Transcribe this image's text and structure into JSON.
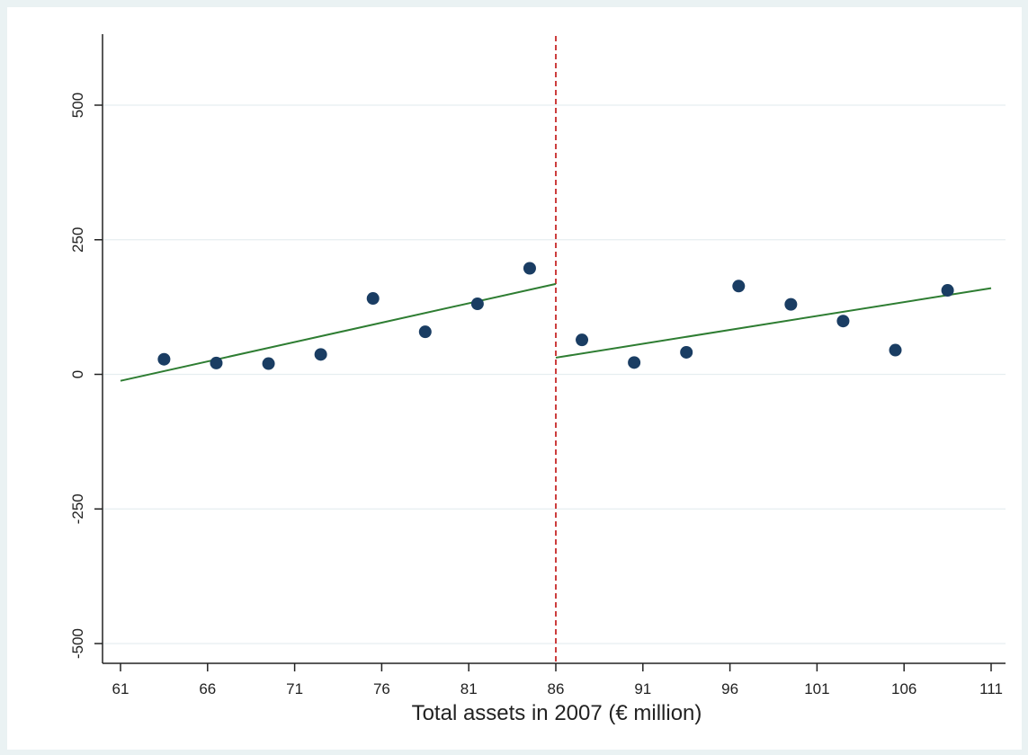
{
  "chart_data": {
    "type": "scatter",
    "title": "",
    "xlabel": "Total assets in 2007 (€ million)",
    "ylabel": "",
    "xlim": [
      61,
      111
    ],
    "ylim": [
      -500,
      500
    ],
    "xticks": [
      61,
      66,
      71,
      76,
      81,
      86,
      91,
      96,
      101,
      106,
      111
    ],
    "yticks": [
      -500,
      -250,
      0,
      250,
      500
    ],
    "grid": "horizontal",
    "cutoff": 86,
    "points": [
      {
        "x": 63.5,
        "y": 28
      },
      {
        "x": 66.5,
        "y": 21
      },
      {
        "x": 69.5,
        "y": 20
      },
      {
        "x": 72.5,
        "y": 37
      },
      {
        "x": 75.5,
        "y": 141
      },
      {
        "x": 78.5,
        "y": 79
      },
      {
        "x": 81.5,
        "y": 131
      },
      {
        "x": 84.5,
        "y": 197
      },
      {
        "x": 87.5,
        "y": 64
      },
      {
        "x": 90.5,
        "y": 22
      },
      {
        "x": 93.5,
        "y": 41
      },
      {
        "x": 96.5,
        "y": 164
      },
      {
        "x": 99.5,
        "y": 130
      },
      {
        "x": 102.5,
        "y": 99
      },
      {
        "x": 105.5,
        "y": 45
      },
      {
        "x": 108.5,
        "y": 156
      }
    ],
    "fit_lines": [
      {
        "x": [
          61,
          86
        ],
        "y": [
          -12,
          168
        ]
      },
      {
        "x": [
          86,
          111
        ],
        "y": [
          31,
          160
        ]
      }
    ],
    "colors": {
      "points": "#1a3d63",
      "fit": "#2e7d32",
      "cutoff": "#c62828",
      "grid": "#e6eef0",
      "axis": "#222222"
    }
  }
}
